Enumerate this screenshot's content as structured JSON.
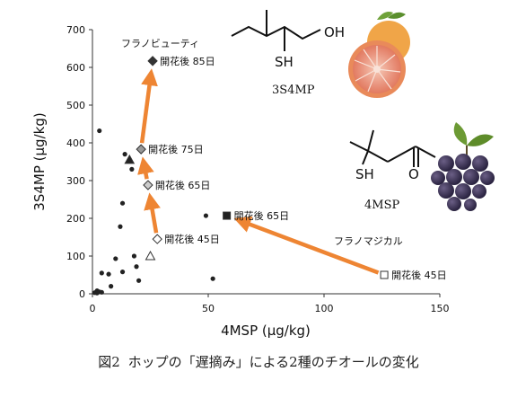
{
  "chart_data": {
    "type": "scatter",
    "title": "",
    "xlabel": "4MSP (μg/kg)",
    "ylabel": "3S4MP (μg/kg)",
    "xlim": [
      0,
      150
    ],
    "ylim": [
      0,
      700
    ],
    "x_ticks": [
      0,
      50,
      100,
      150
    ],
    "y_ticks": [
      0,
      100,
      200,
      300,
      400,
      500,
      600,
      700
    ],
    "grid": false,
    "series": [
      {
        "name": "フラノビューティ",
        "marker": "diamond",
        "points": [
          {
            "x": 28,
            "y": 145,
            "label": "開花後 45日",
            "fill": "#ffffff"
          },
          {
            "x": 24,
            "y": 288,
            "label": "開花後 65日",
            "fill": "#cccccc"
          },
          {
            "x": 21,
            "y": 383,
            "label": "開花後 75日",
            "fill": "#999999"
          },
          {
            "x": 26,
            "y": 617,
            "label": "開花後 85日",
            "fill": "#333333"
          }
        ]
      },
      {
        "name": "フラノマジカル",
        "marker": "square",
        "points": [
          {
            "x": 126,
            "y": 50,
            "label": "開花後 45日",
            "fill": "#ffffff"
          },
          {
            "x": 58,
            "y": 207,
            "label": "開花後 65日",
            "fill": "#222222"
          }
        ]
      },
      {
        "name": "",
        "marker": "triangle",
        "points": [
          {
            "x": 16,
            "y": 355,
            "fill": "#222222"
          },
          {
            "x": 25,
            "y": 100,
            "fill": "#ffffff"
          }
        ]
      },
      {
        "name": "",
        "marker": "dot",
        "points": [
          {
            "x": 3,
            "y": 432
          },
          {
            "x": 14,
            "y": 370
          },
          {
            "x": 17,
            "y": 330
          },
          {
            "x": 13,
            "y": 240
          },
          {
            "x": 12,
            "y": 178
          },
          {
            "x": 49,
            "y": 207
          },
          {
            "x": 18,
            "y": 100
          },
          {
            "x": 10,
            "y": 93
          },
          {
            "x": 13,
            "y": 58
          },
          {
            "x": 19,
            "y": 72
          },
          {
            "x": 4,
            "y": 55
          },
          {
            "x": 7,
            "y": 52
          },
          {
            "x": 20,
            "y": 35
          },
          {
            "x": 8,
            "y": 20
          },
          {
            "x": 52,
            "y": 40
          },
          {
            "x": 2,
            "y": 8
          },
          {
            "x": 3,
            "y": 5
          },
          {
            "x": 4,
            "y": 4
          },
          {
            "x": 1,
            "y": 3
          },
          {
            "x": 2,
            "y": 2
          }
        ]
      }
    ],
    "molecules": [
      {
        "name": "3S4MP",
        "groups": [
          "OH",
          "SH"
        ],
        "fruit": "grapefruit"
      },
      {
        "name": "4MSP",
        "groups": [
          "SH",
          "O"
        ],
        "fruit": "grape"
      }
    ]
  },
  "caption": {
    "figure_number": "図2",
    "text": "ホップの「遅摘み」による2種のチオールの変化"
  },
  "colors": {
    "arrow": "#ee8533",
    "axis": "#333333",
    "text": "#111111"
  }
}
